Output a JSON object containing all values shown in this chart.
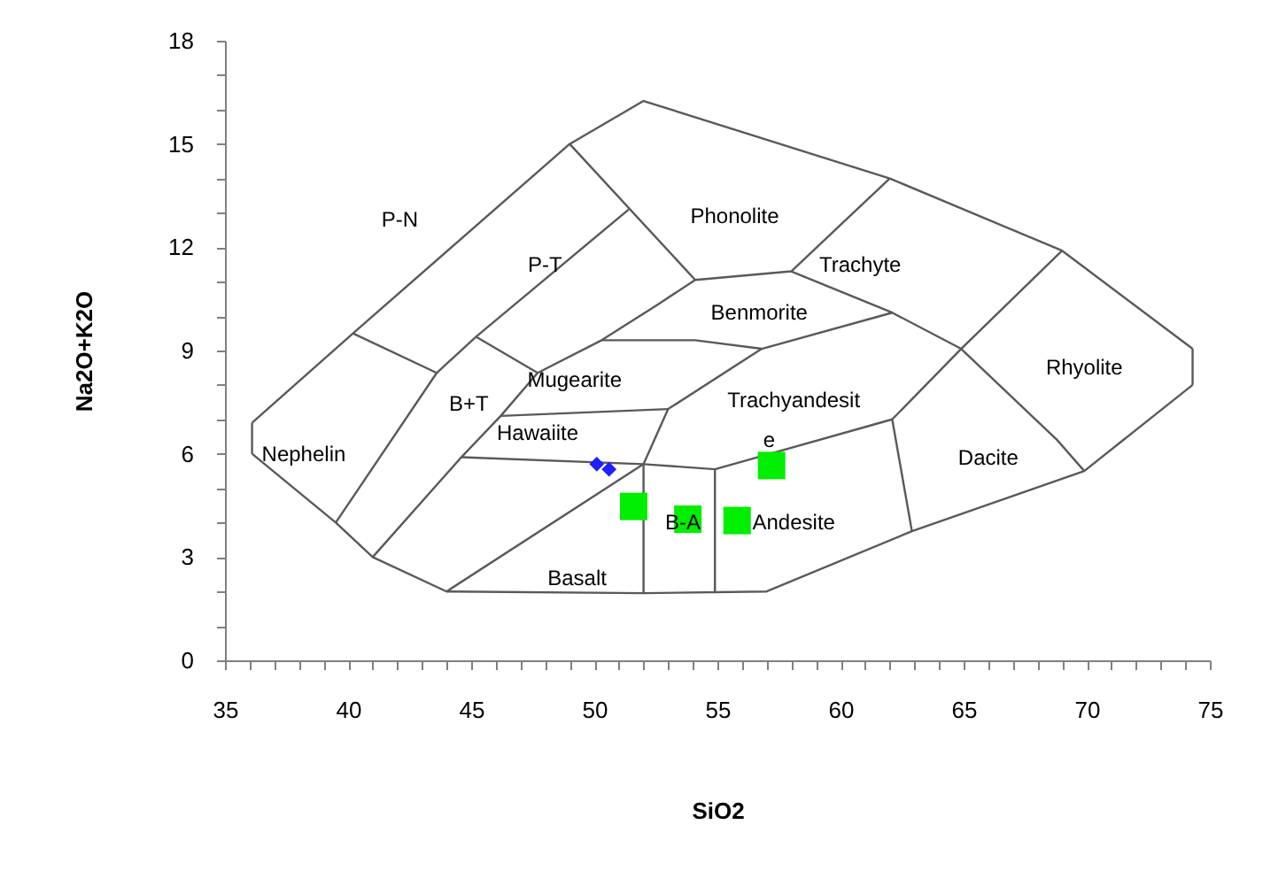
{
  "chart_data": {
    "type": "scatter",
    "xlabel": "SiO2",
    "ylabel": "Na2O+K2O",
    "xlim": [
      35,
      75
    ],
    "ylim": [
      0,
      18
    ],
    "xticks": [
      35,
      {
        "value": 36,
        "label": null
      },
      {
        "value": 37,
        "label": null
      },
      {
        "value": 38,
        "label": null
      },
      {
        "value": 39,
        "label": null
      },
      40,
      {
        "value": 41,
        "label": null
      },
      {
        "value": 42,
        "label": null
      },
      {
        "value": 43,
        "label": null
      },
      {
        "value": 44,
        "label": null
      },
      45,
      {
        "value": 46,
        "label": null
      },
      {
        "value": 47,
        "label": null
      },
      {
        "value": 48,
        "label": null
      },
      {
        "value": 49,
        "label": null
      },
      50,
      {
        "value": 51,
        "label": null
      },
      {
        "value": 52,
        "label": null
      },
      {
        "value": 53,
        "label": null
      },
      {
        "value": 54,
        "label": null
      },
      55,
      {
        "value": 56,
        "label": null
      },
      {
        "value": 57,
        "label": null
      },
      {
        "value": 58,
        "label": null
      },
      {
        "value": 59,
        "label": null
      },
      60,
      {
        "value": 61,
        "label": null
      },
      {
        "value": 62,
        "label": null
      },
      {
        "value": 63,
        "label": null
      },
      {
        "value": 64,
        "label": null
      },
      65,
      {
        "value": 66,
        "label": null
      },
      {
        "value": 67,
        "label": null
      },
      {
        "value": 68,
        "label": null
      },
      {
        "value": 69,
        "label": null
      },
      70,
      {
        "value": 71,
        "label": null
      },
      {
        "value": 72,
        "label": null
      },
      {
        "value": 73,
        "label": null
      },
      {
        "value": 74,
        "label": null
      },
      75
    ],
    "yticks": [
      0,
      {
        "value": 1,
        "label": null
      },
      {
        "value": 2,
        "label": null
      },
      3,
      {
        "value": 4,
        "label": null
      },
      {
        "value": 5,
        "label": null
      },
      6,
      {
        "value": 7,
        "label": null
      },
      {
        "value": 8,
        "label": null
      },
      9,
      {
        "value": 10,
        "label": null
      },
      {
        "value": 11,
        "label": null
      },
      12,
      {
        "value": 13,
        "label": null
      },
      {
        "value": 14,
        "label": null
      },
      15,
      {
        "value": 16,
        "label": null
      },
      {
        "value": 17,
        "label": null
      },
      18
    ],
    "series": [
      {
        "type": "line",
        "color": "#595959",
        "x": [
          36.1,
          40.2,
          49,
          52,
          62,
          69,
          74.3
        ],
        "values": [
          6.9,
          9.5,
          15,
          16.25,
          14,
          11.9,
          9.05
        ]
      },
      {
        "type": "line",
        "color": "#595959",
        "x": [
          74.3,
          74.3
        ],
        "values": [
          9.05,
          8
        ]
      },
      {
        "type": "line",
        "color": "#595959",
        "x": [
          36.1,
          39.5,
          41,
          44,
          52,
          57,
          62.9,
          69.9,
          74.3
        ],
        "values": [
          6,
          4,
          3,
          2,
          1.95,
          2,
          3.75,
          5.5,
          8
        ]
      },
      {
        "type": "line",
        "color": "#595959",
        "x": [
          36.1,
          36.1
        ],
        "values": [
          6,
          6.9
        ]
      },
      {
        "type": "line",
        "color": "#595959",
        "x": [
          39.5,
          43.6
        ],
        "values": [
          4,
          8.35
        ]
      },
      {
        "type": "line",
        "color": "#595959",
        "x": [
          40.2,
          43.6,
          45.2,
          51.4
        ],
        "values": [
          9.5,
          8.35,
          9.4,
          13.1
        ]
      },
      {
        "type": "line",
        "color": "#595959",
        "x": [
          49,
          54.1
        ],
        "values": [
          15,
          11.05
        ]
      },
      {
        "type": "line",
        "color": "#595959",
        "x": [
          41,
          44.6,
          46.2,
          47.7,
          50.3,
          52.5,
          54.1,
          58,
          62
        ],
        "values": [
          3,
          5.9,
          7.1,
          8.35,
          9.3,
          10.3,
          11.05,
          11.3,
          14
        ]
      },
      {
        "type": "line",
        "color": "#595959",
        "x": [
          45.2,
          47.7
        ],
        "values": [
          9.4,
          8.35
        ]
      },
      {
        "type": "line",
        "color": "#595959",
        "x": [
          50.3,
          54.1,
          56.8,
          62.1
        ],
        "values": [
          9.3,
          9.3,
          9.05,
          10.1
        ]
      },
      {
        "type": "line",
        "color": "#595959",
        "x": [
          58,
          62.1,
          64.9,
          69
        ],
        "values": [
          11.3,
          10.1,
          9.05,
          11.9
        ]
      },
      {
        "type": "line",
        "color": "#595959",
        "x": [
          62.1,
          64.9
        ],
        "values": [
          7,
          9.05
        ]
      },
      {
        "type": "line",
        "color": "#595959",
        "x": [
          62.1,
          62.9
        ],
        "values": [
          7,
          3.75
        ]
      },
      {
        "type": "line",
        "color": "#595959",
        "x": [
          64.9,
          68.8,
          69.9
        ],
        "values": [
          9.05,
          6.4,
          5.5
        ]
      },
      {
        "type": "line",
        "color": "#595959",
        "x": [
          52,
          52,
          53,
          56.8
        ],
        "values": [
          1.95,
          5.7,
          7.3,
          9.05
        ]
      },
      {
        "type": "line",
        "color": "#595959",
        "x": [
          46.2,
          53
        ],
        "values": [
          7.1,
          7.3
        ]
      },
      {
        "type": "line",
        "color": "#595959",
        "x": [
          44.6,
          52,
          54.9,
          62.1
        ],
        "values": [
          5.9,
          5.7,
          5.55,
          7
        ]
      },
      {
        "type": "line",
        "color": "#595959",
        "x": [
          44,
          52
        ],
        "values": [
          2,
          5.7
        ]
      },
      {
        "type": "line",
        "color": "#595959",
        "x": [
          54.9,
          54.9
        ],
        "values": [
          5.55,
          1.95
        ]
      },
      {
        "marker": "diamond",
        "color": "#1f1fff",
        "x": [
          50.1,
          50.6
        ],
        "values": [
          5.7,
          5.55
        ]
      },
      {
        "marker": "square",
        "color": "#00ee00",
        "x": [
          51.6,
          53.8,
          55.8,
          57.2
        ],
        "values": [
          4.47,
          4.1,
          4.06,
          5.66
        ]
      }
    ],
    "annotations": [
      "Phonolite",
      "P-N",
      "Trachyte",
      "P-T",
      "Benmorite",
      "Rhyolite",
      "Mugearite",
      "B+T",
      "Trachyandesit",
      "e",
      "Hawaiite",
      "Nephelin",
      "Dacite",
      "B-A",
      "Andesite",
      "Basalt"
    ]
  }
}
